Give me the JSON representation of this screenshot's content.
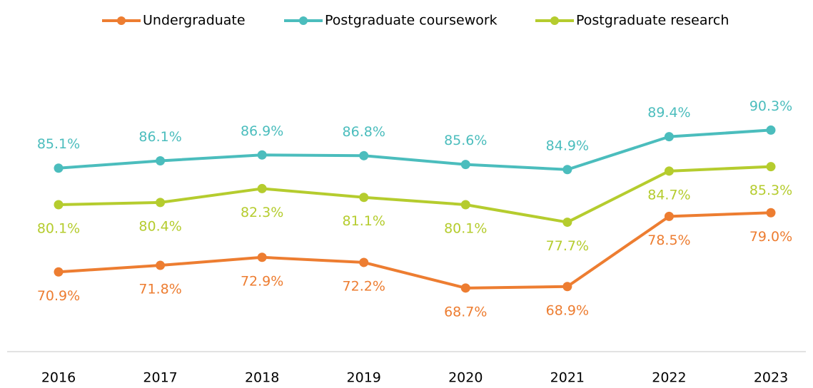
{
  "chart_data": {
    "type": "line",
    "categories": [
      "2016",
      "2017",
      "2018",
      "2019",
      "2020",
      "2021",
      "2022",
      "2023"
    ],
    "ylim": [
      60,
      100
    ],
    "legend": "top",
    "series": [
      {
        "name": "Undergraduate",
        "color": "#ED7D31",
        "label_position": "below",
        "values": [
          70.9,
          71.8,
          72.9,
          72.2,
          68.7,
          68.9,
          78.5,
          79.0
        ],
        "value_labels": [
          "70.9%",
          "71.8%",
          "72.9%",
          "72.2%",
          "68.7%",
          "68.9%",
          "78.5%",
          "79.0%"
        ]
      },
      {
        "name": "Postgraduate coursework",
        "color": "#4BBDBD",
        "label_position": "above",
        "values": [
          85.1,
          86.1,
          86.9,
          86.8,
          85.6,
          84.9,
          89.4,
          90.3
        ],
        "value_labels": [
          "85.1%",
          "86.1%",
          "86.9%",
          "86.8%",
          "85.6%",
          "84.9%",
          "89.4%",
          "90.3%"
        ]
      },
      {
        "name": "Postgraduate research",
        "color": "#B5CC2E",
        "label_position": "below",
        "values": [
          80.1,
          80.4,
          82.3,
          81.1,
          80.1,
          77.7,
          84.7,
          85.3
        ],
        "value_labels": [
          "80.1%",
          "80.4%",
          "82.3%",
          "81.1%",
          "80.1%",
          "77.7%",
          "84.7%",
          "85.3%"
        ]
      }
    ]
  }
}
